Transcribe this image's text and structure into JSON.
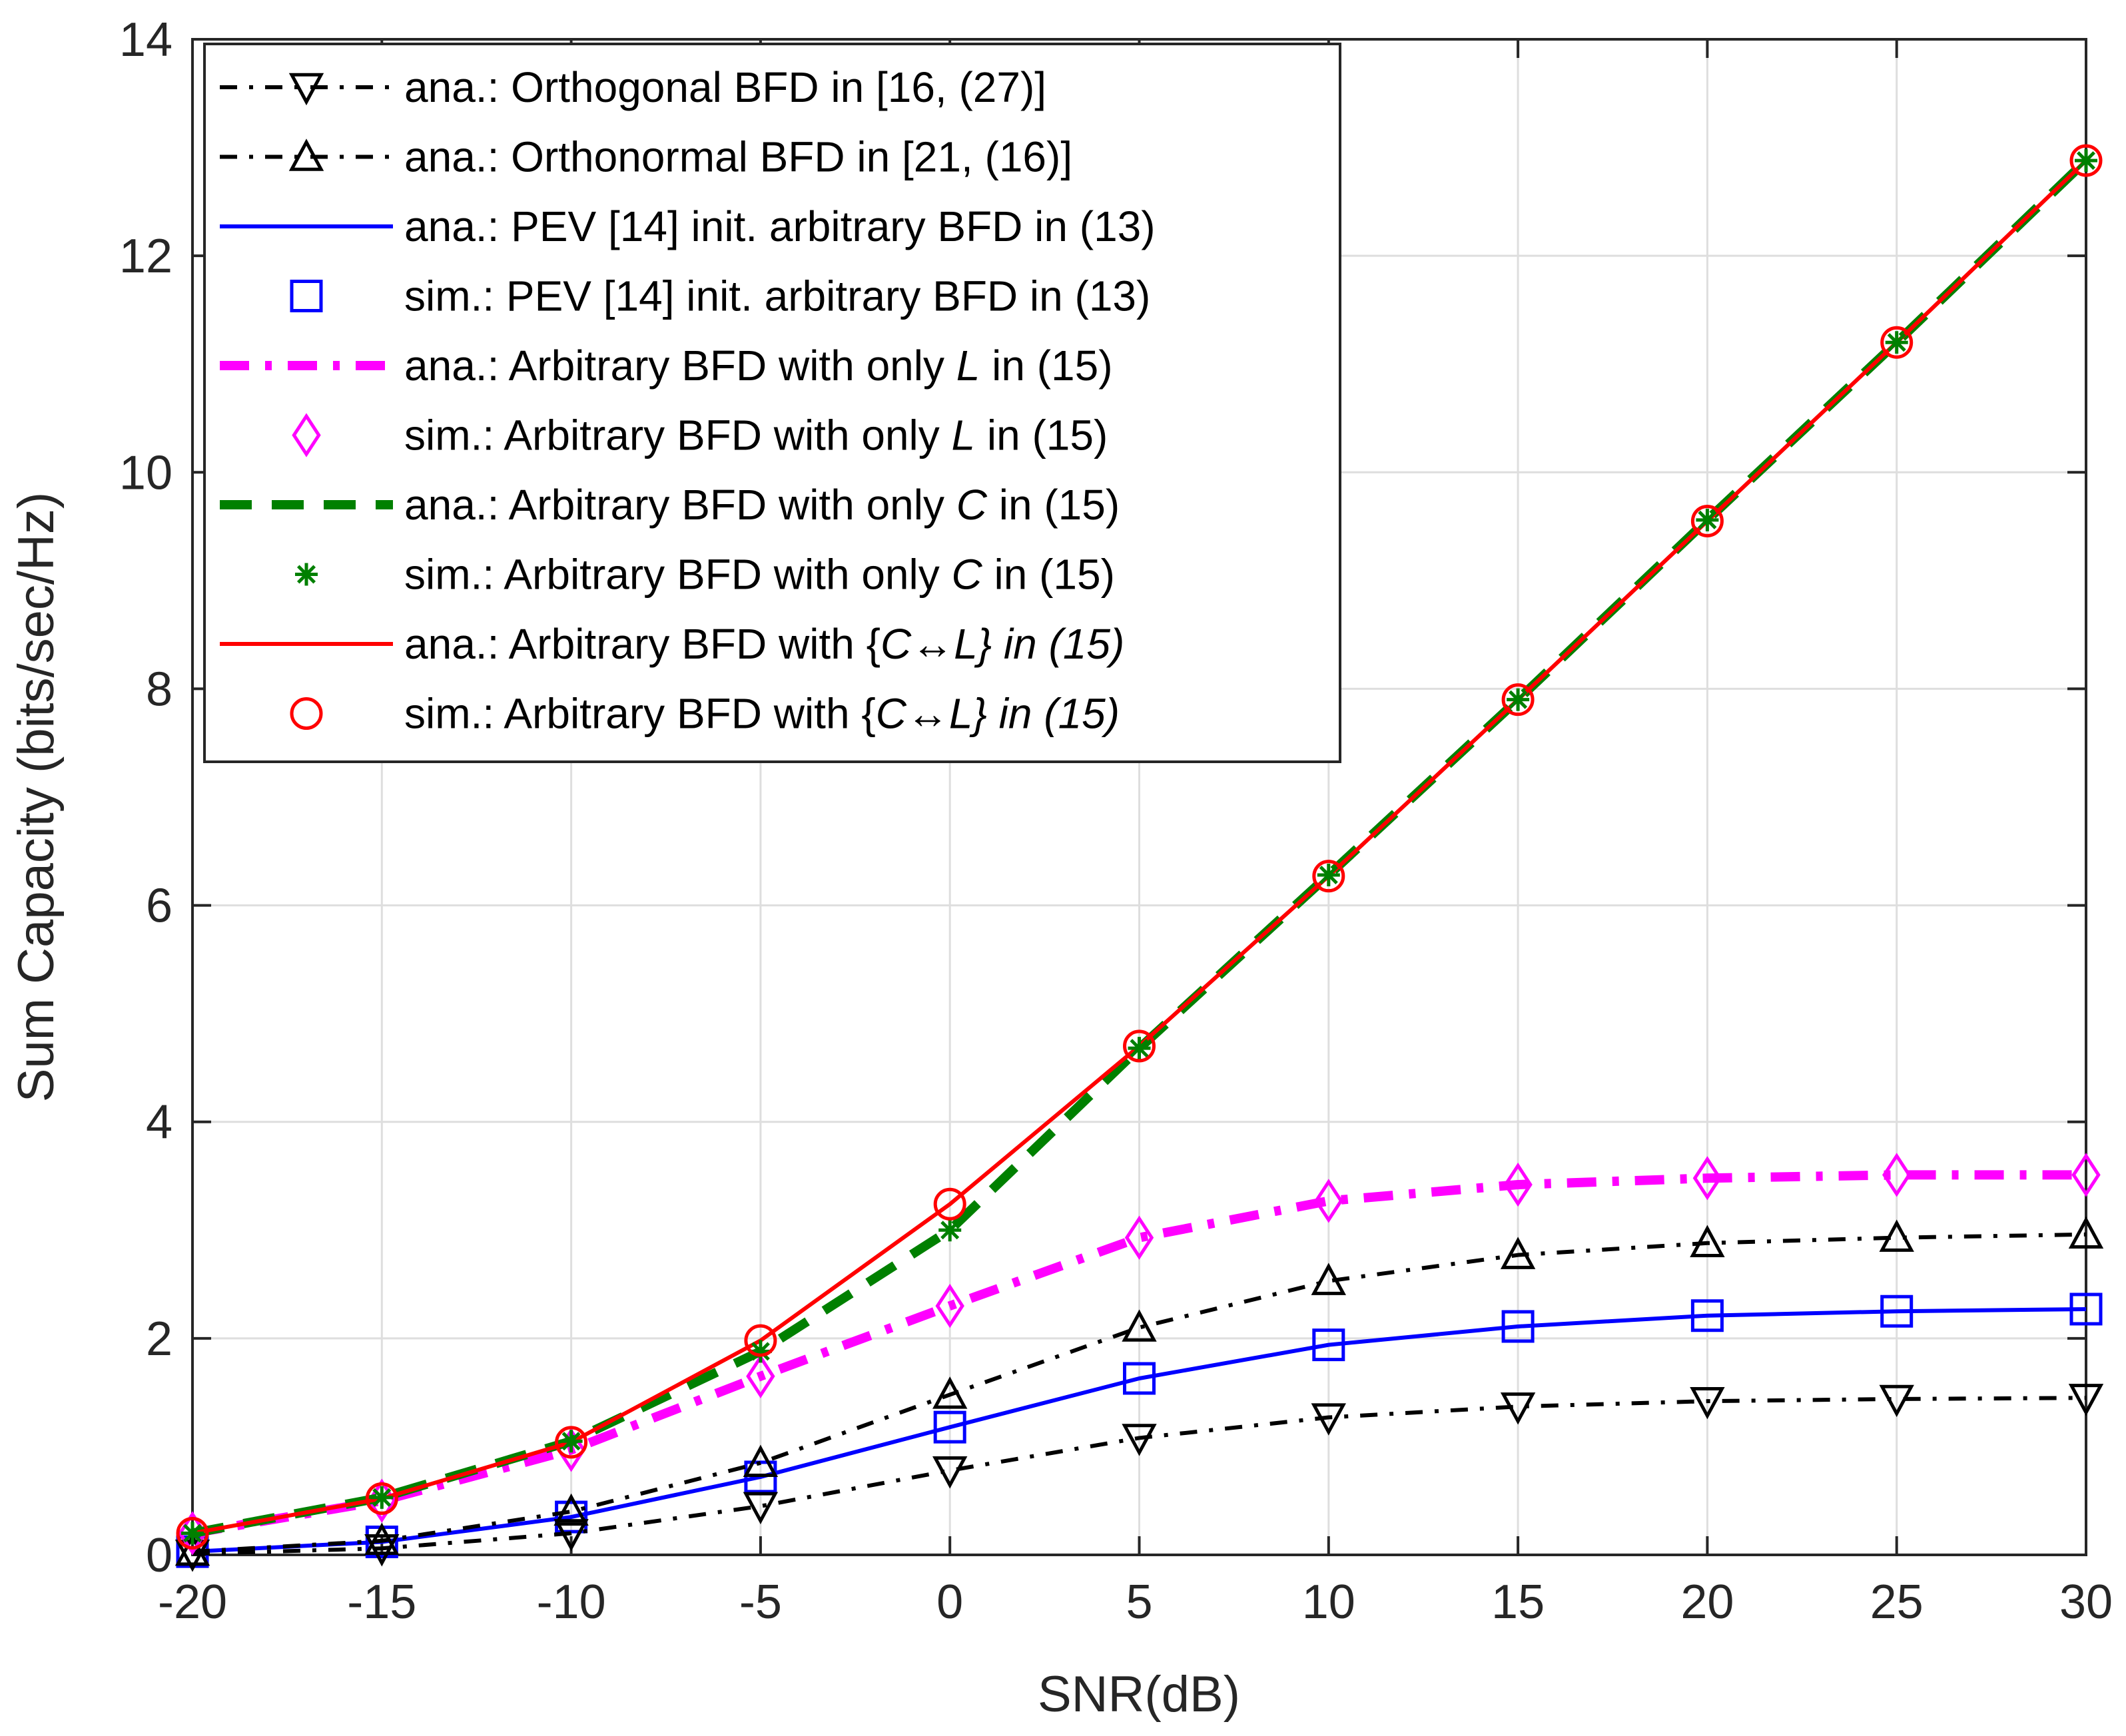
{
  "chart_data": {
    "type": "line",
    "xlabel": "SNR(dB)",
    "ylabel": "Sum Capacity (bits/sec/Hz)",
    "xlim": [
      -20,
      30
    ],
    "ylim": [
      0,
      14
    ],
    "grid": true,
    "legend_position": "top-left",
    "x_ticks": [
      "-20",
      "-15",
      "-10",
      "-5",
      "0",
      "5",
      "10",
      "15",
      "20",
      "25",
      "30"
    ],
    "y_ticks": [
      "0",
      "2",
      "4",
      "6",
      "8",
      "10",
      "12",
      "14"
    ],
    "x": [
      -20,
      -15,
      -10,
      -5,
      0,
      5,
      10,
      15,
      20,
      25,
      30
    ],
    "series": [
      {
        "name": "ana.: Orthogonal BFD in [16, (27)]",
        "legend": {
          "prefix": "ana.: Orthogonal BFD in [16, (27)]",
          "var": "",
          "suffix": ""
        },
        "color": "#000000",
        "line": "dashdot",
        "marker": "triangle-down",
        "values": [
          0.01,
          0.06,
          0.2,
          0.45,
          0.78,
          1.08,
          1.27,
          1.37,
          1.42,
          1.44,
          1.45
        ]
      },
      {
        "name": "ana.: Orthonormal BFD in [21, (16)]",
        "legend": {
          "prefix": "ana.: Orthonormal BFD in [21, (16)]",
          "var": "",
          "suffix": ""
        },
        "color": "#000000",
        "line": "dashdot",
        "marker": "triangle-up",
        "values": [
          0.03,
          0.13,
          0.4,
          0.85,
          1.48,
          2.1,
          2.53,
          2.77,
          2.88,
          2.93,
          2.96
        ]
      },
      {
        "name": "ana.: PEV [14]  init. arbitrary BFD in (13)",
        "legend": {
          "prefix": "ana.: PEV [14]  init. arbitrary BFD in (13)",
          "var": "",
          "suffix": ""
        },
        "color": "#0000ff",
        "line": "solid",
        "marker": "none",
        "values": [
          0.03,
          0.12,
          0.35,
          0.72,
          1.18,
          1.63,
          1.94,
          2.11,
          2.21,
          2.25,
          2.27
        ]
      },
      {
        "name": "sim.: PEV [14]  init. arbitrary BFD in (13)",
        "legend": {
          "prefix": "sim.: PEV [14]  init. arbitrary BFD in (13)",
          "var": "",
          "suffix": ""
        },
        "color": "#0000ff",
        "line": "none",
        "marker": "square",
        "values": [
          0.03,
          0.12,
          0.35,
          0.72,
          1.18,
          1.63,
          1.94,
          2.11,
          2.21,
          2.25,
          2.27
        ]
      },
      {
        "name": "ana.: Arbitrary BFD with only L in (15)",
        "legend": {
          "prefix": "ana.: Arbitrary BFD with only ",
          "var": "L",
          "suffix": " in (15)"
        },
        "color": "#ff00ff",
        "line": "dashdot-thick",
        "marker": "none",
        "values": [
          0.2,
          0.5,
          0.97,
          1.65,
          2.3,
          2.93,
          3.27,
          3.42,
          3.48,
          3.51,
          3.51
        ]
      },
      {
        "name": "sim.: Arbitrary BFD with only L in (15)",
        "legend": {
          "prefix": "sim.: Arbitrary BFD with only ",
          "var": "L",
          "suffix": " in (15)"
        },
        "color": "#ff00ff",
        "line": "none",
        "marker": "diamond",
        "values": [
          0.2,
          0.5,
          0.97,
          1.65,
          2.3,
          2.93,
          3.27,
          3.42,
          3.48,
          3.51,
          3.51
        ]
      },
      {
        "name": "ana.: Arbitrary BFD with only C in (15)",
        "legend": {
          "prefix": "ana.: Arbitrary BFD with only ",
          "var": "C",
          "suffix": " in (15)"
        },
        "color": "#008000",
        "line": "dashed-thick",
        "marker": "none",
        "values": [
          0.2,
          0.53,
          1.05,
          1.88,
          3.0,
          4.68,
          6.28,
          7.9,
          9.56,
          11.2,
          12.88
        ]
      },
      {
        "name": "sim.: Arbitrary BFD with only C in (15)",
        "legend": {
          "prefix": "sim.: Arbitrary BFD with only ",
          "var": "C",
          "suffix": " in (15)"
        },
        "color": "#008000",
        "line": "none",
        "marker": "asterisk",
        "values": [
          0.2,
          0.53,
          1.05,
          1.88,
          3.0,
          4.68,
          6.28,
          7.9,
          9.56,
          11.2,
          12.88
        ]
      },
      {
        "name": "ana.: Arbitrary BFD with {C↔L} in (15)",
        "legend": {
          "prefix": "ana.: Arbitrary BFD with {",
          "var": "C↔L} in (15)",
          "suffix": ""
        },
        "color": "#ff0000",
        "line": "solid",
        "marker": "none",
        "values": [
          0.2,
          0.52,
          1.04,
          1.98,
          3.24,
          4.7,
          6.27,
          7.9,
          9.55,
          11.2,
          12.88
        ]
      },
      {
        "name": "sim.: Arbitrary BFD with {C↔L} in (15)",
        "legend": {
          "prefix": "sim.: Arbitrary BFD with {",
          "var": "C↔L} in (15)",
          "suffix": ""
        },
        "color": "#ff0000",
        "line": "none",
        "marker": "circle",
        "values": [
          0.2,
          0.52,
          1.04,
          1.98,
          3.24,
          4.7,
          6.27,
          7.9,
          9.55,
          11.2,
          12.88
        ]
      }
    ]
  }
}
